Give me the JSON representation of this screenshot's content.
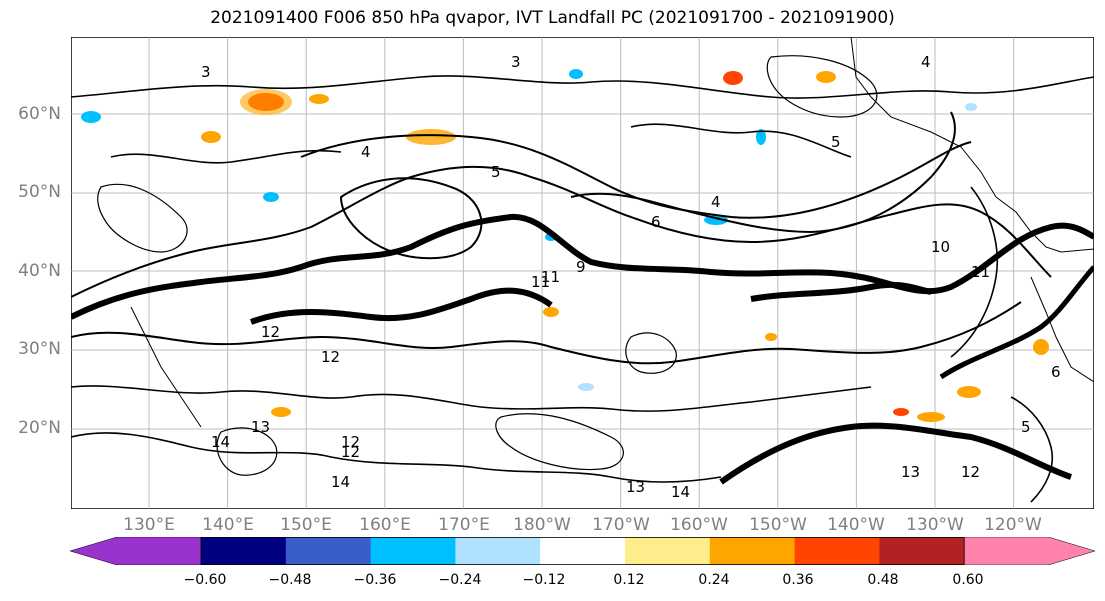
{
  "title": "2021091400 F006 850 hPa qvapor, IVT Landfall PC (2021091700 - 2021091900)",
  "lat_labels": [
    "60°N",
    "50°N",
    "40°N",
    "30°N",
    "20°N"
  ],
  "lon_labels": [
    "130°E",
    "140°E",
    "150°E",
    "160°E",
    "170°E",
    "180°W",
    "170°W",
    "160°W",
    "150°W",
    "140°W",
    "130°W",
    "120°W"
  ],
  "contour_labels": [
    "3",
    "4",
    "5",
    "6",
    "9",
    "10",
    "11",
    "12",
    "13",
    "14"
  ],
  "colorbar": {
    "ticks": [
      "−0.60",
      "−0.48",
      "−0.36",
      "−0.24",
      "−0.12",
      "0.12",
      "0.24",
      "0.36",
      "0.48",
      "0.60"
    ],
    "colors": [
      "#9a32cd",
      "#000080",
      "#3a5ec8",
      "#00bfff",
      "#b0e2ff",
      "#ffffff",
      "#ffec8b",
      "#ffa500",
      "#ff4500",
      "#b22222",
      "#ff82ab"
    ]
  },
  "colors": {
    "contour": "#000000",
    "grid": "#a0a0a0",
    "label": "#808080"
  }
}
